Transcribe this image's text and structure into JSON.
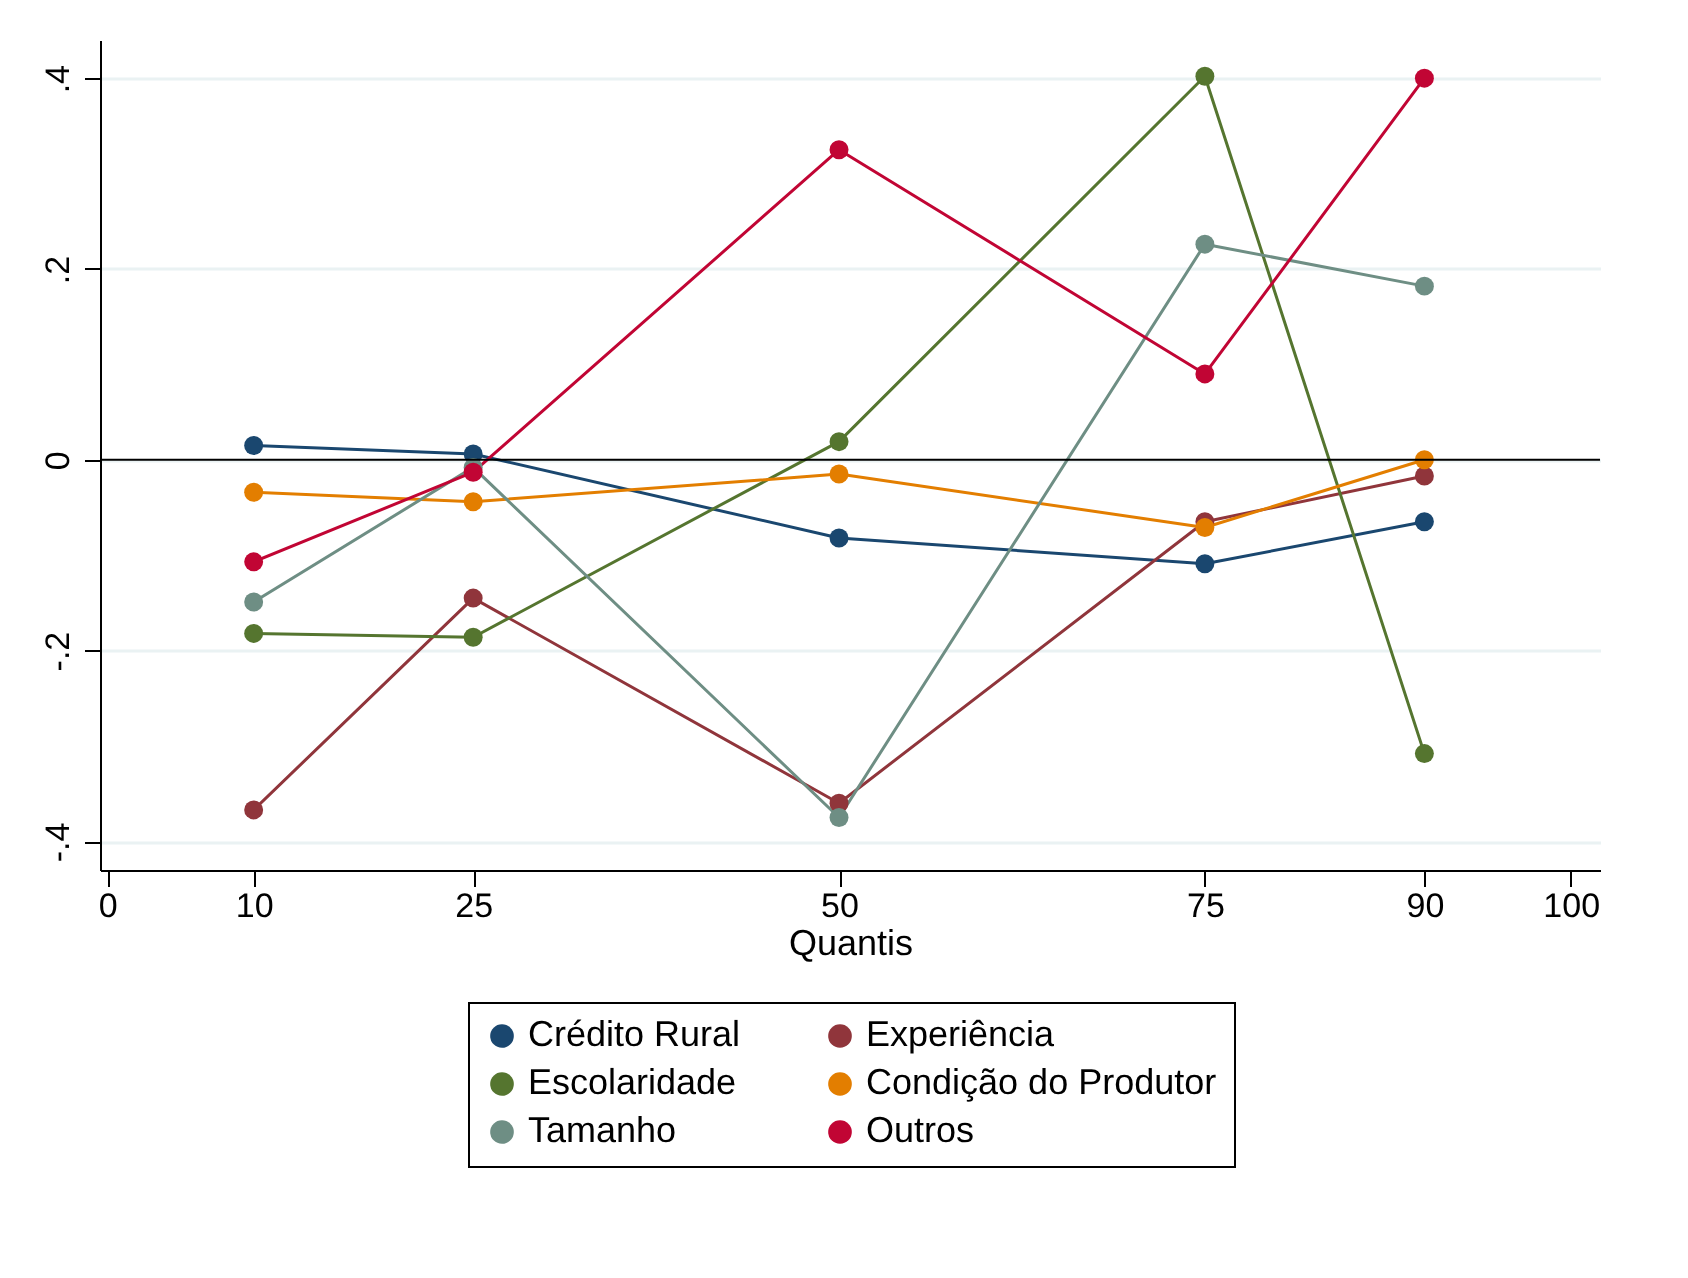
{
  "chart_data": {
    "type": "line",
    "xlabel": "Quantis",
    "x": [
      10,
      25,
      50,
      75,
      90
    ],
    "xlim": [
      -0.5,
      102
    ],
    "xticks": [
      0,
      10,
      25,
      50,
      75,
      90,
      100
    ],
    "ylim": [
      -0.43,
      0.44
    ],
    "yticks": [
      {
        "value": -0.4,
        "label": "-.4"
      },
      {
        "value": -0.2,
        "label": "-.2"
      },
      0,
      {
        "value": 0.2,
        "label": ".2"
      },
      {
        "value": 0.4,
        "label": ".4"
      }
    ],
    "grid": "y",
    "legend": "bottom",
    "marker": "circle",
    "line_style": "solid",
    "ref_lines": [
      {
        "axis": "y",
        "value": 0,
        "color": "#000000"
      }
    ],
    "series": [
      {
        "name": "Crédito Rural",
        "color": "#1a476f",
        "values": [
          0.015,
          0.006,
          -0.082,
          -0.109,
          -0.065
        ]
      },
      {
        "name": "Experiência",
        "color": "#90353b",
        "values": [
          -0.367,
          -0.145,
          -0.36,
          -0.065,
          -0.017
        ]
      },
      {
        "name": "Escolaridade",
        "color": "#55752f",
        "values": [
          -0.182,
          -0.186,
          0.019,
          0.402,
          -0.308
        ]
      },
      {
        "name": "Condição do Produtor",
        "color": "#e37e00",
        "values": [
          -0.034,
          -0.044,
          -0.015,
          -0.071,
          0
        ]
      },
      {
        "name": "Tamanho",
        "color": "#6e8e84",
        "values": [
          -0.149,
          -0.008,
          -0.375,
          0.226,
          0.182
        ]
      },
      {
        "name": "Outros",
        "color": "#c10534",
        "values": [
          -0.107,
          -0.013,
          0.325,
          0.09,
          0.4
        ]
      }
    ]
  }
}
